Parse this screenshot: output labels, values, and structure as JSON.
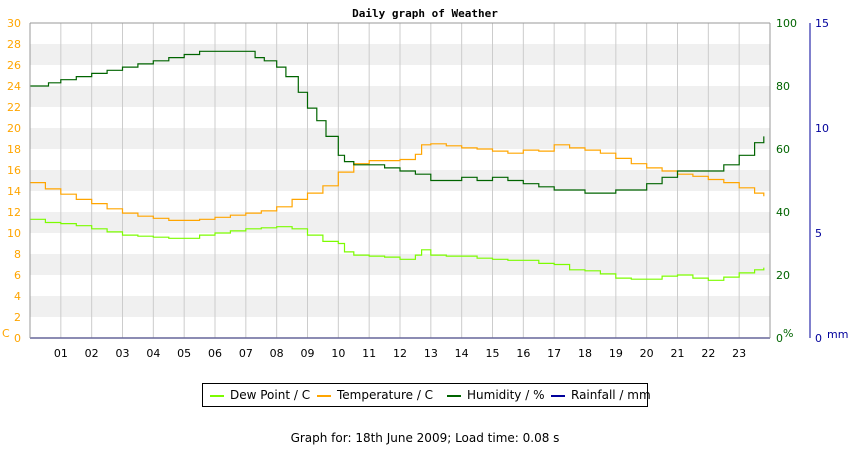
{
  "chart_data": {
    "type": "line",
    "title": "Daily graph of Weather",
    "left_axis": {
      "unit": "C",
      "ylim": [
        0,
        30
      ],
      "ticks": [
        "0",
        "2",
        "4",
        "6",
        "8",
        "10",
        "12",
        "14",
        "16",
        "18",
        "20",
        "22",
        "24",
        "26",
        "28",
        "30"
      ],
      "color": "#ffa500"
    },
    "right_axis_1": {
      "unit": "%",
      "ylim": [
        0,
        100
      ],
      "ticks": [
        "0",
        "20",
        "40",
        "60",
        "80",
        "100"
      ],
      "color": "#006400"
    },
    "right_axis_2": {
      "unit": "mm",
      "ylim": [
        0,
        15
      ],
      "ticks": [
        "0",
        "5",
        "10",
        "15"
      ],
      "color": "#00009b"
    },
    "xlim": [
      0,
      24
    ],
    "x_ticks": [
      "01",
      "02",
      "03",
      "04",
      "05",
      "06",
      "07",
      "08",
      "09",
      "10",
      "11",
      "12",
      "13",
      "14",
      "15",
      "16",
      "17",
      "18",
      "19",
      "20",
      "21",
      "22",
      "23"
    ],
    "grid": true,
    "legend_position": "bottom",
    "series": [
      {
        "name": "Dew Point / C",
        "axis": "left",
        "color": "#7cfc00",
        "x": [
          0,
          0.5,
          1,
          1.5,
          2,
          2.5,
          3,
          3.5,
          4,
          4.5,
          5,
          5.5,
          6,
          6.5,
          7,
          7.5,
          8,
          8.5,
          9,
          9.5,
          10,
          10.2,
          10.5,
          11,
          11.5,
          12,
          12.5,
          12.7,
          13,
          13.5,
          14,
          14.5,
          15,
          15.5,
          16,
          16.5,
          17,
          17.5,
          18,
          18.5,
          19,
          19.5,
          20,
          20.5,
          21,
          21.5,
          22,
          22.5,
          23,
          23.5,
          23.8
        ],
        "values": [
          11.3,
          11.0,
          10.9,
          10.7,
          10.4,
          10.1,
          9.8,
          9.7,
          9.6,
          9.5,
          9.5,
          9.8,
          10.0,
          10.2,
          10.4,
          10.5,
          10.6,
          10.4,
          9.8,
          9.2,
          9.0,
          8.2,
          7.9,
          7.8,
          7.7,
          7.5,
          7.9,
          8.4,
          7.9,
          7.8,
          7.8,
          7.6,
          7.5,
          7.4,
          7.4,
          7.1,
          7.0,
          6.5,
          6.4,
          6.1,
          5.7,
          5.6,
          5.6,
          5.9,
          6.0,
          5.7,
          5.5,
          5.8,
          6.2,
          6.5,
          6.7
        ]
      },
      {
        "name": "Temperature / C",
        "axis": "left",
        "color": "#ffa500",
        "x": [
          0,
          0.5,
          1,
          1.5,
          2,
          2.5,
          3,
          3.5,
          4,
          4.5,
          5,
          5.5,
          6,
          6.5,
          7,
          7.5,
          8,
          8.5,
          9,
          9.5,
          10,
          10.5,
          11,
          11.5,
          12,
          12.5,
          12.7,
          13,
          13.5,
          14,
          14.5,
          15,
          15.5,
          16,
          16.5,
          17,
          17.5,
          18,
          18.5,
          19,
          19.5,
          20,
          20.5,
          21,
          21.5,
          22,
          22.5,
          23,
          23.5,
          23.8
        ],
        "values": [
          14.8,
          14.2,
          13.7,
          13.2,
          12.8,
          12.3,
          11.9,
          11.6,
          11.4,
          11.2,
          11.2,
          11.3,
          11.5,
          11.7,
          11.9,
          12.1,
          12.5,
          13.2,
          13.8,
          14.5,
          15.8,
          16.6,
          16.9,
          16.9,
          17.0,
          17.5,
          18.4,
          18.5,
          18.3,
          18.1,
          18.0,
          17.8,
          17.6,
          17.9,
          17.8,
          18.4,
          18.1,
          17.9,
          17.6,
          17.1,
          16.6,
          16.2,
          15.9,
          15.6,
          15.4,
          15.1,
          14.8,
          14.3,
          13.8,
          13.5
        ]
      },
      {
        "name": "Humidity / %",
        "axis": "right1",
        "color": "#006400",
        "x": [
          0,
          0.3,
          0.6,
          1,
          1.5,
          2,
          2.5,
          3,
          3.5,
          4,
          4.5,
          5,
          5.5,
          6,
          6.5,
          7,
          7.3,
          7.6,
          8,
          8.3,
          8.7,
          9,
          9.3,
          9.6,
          10,
          10.2,
          10.5,
          11,
          11.5,
          12,
          12.5,
          13,
          13.5,
          14,
          14.5,
          15,
          15.5,
          16,
          16.5,
          17,
          17.5,
          18,
          18.5,
          19,
          19.5,
          20,
          20.5,
          21,
          21.5,
          22,
          22.5,
          23,
          23.5,
          23.8
        ],
        "values": [
          80,
          80,
          81,
          82,
          83,
          84,
          85,
          86,
          87,
          88,
          89,
          90,
          91,
          91,
          91,
          91,
          89,
          88,
          86,
          83,
          78,
          73,
          69,
          64,
          58,
          56,
          55,
          55,
          54,
          53,
          52,
          50,
          50,
          51,
          50,
          51,
          50,
          49,
          48,
          47,
          47,
          46,
          46,
          47,
          47,
          49,
          51,
          53,
          53,
          53,
          55,
          58,
          62,
          64
        ]
      },
      {
        "name": "Rainfall / mm",
        "axis": "right2",
        "color": "#00009b",
        "x": [
          0,
          24
        ],
        "values": [
          0,
          0
        ]
      }
    ]
  },
  "footer": "Graph for: 18th June 2009; Load time: 0.08 s"
}
